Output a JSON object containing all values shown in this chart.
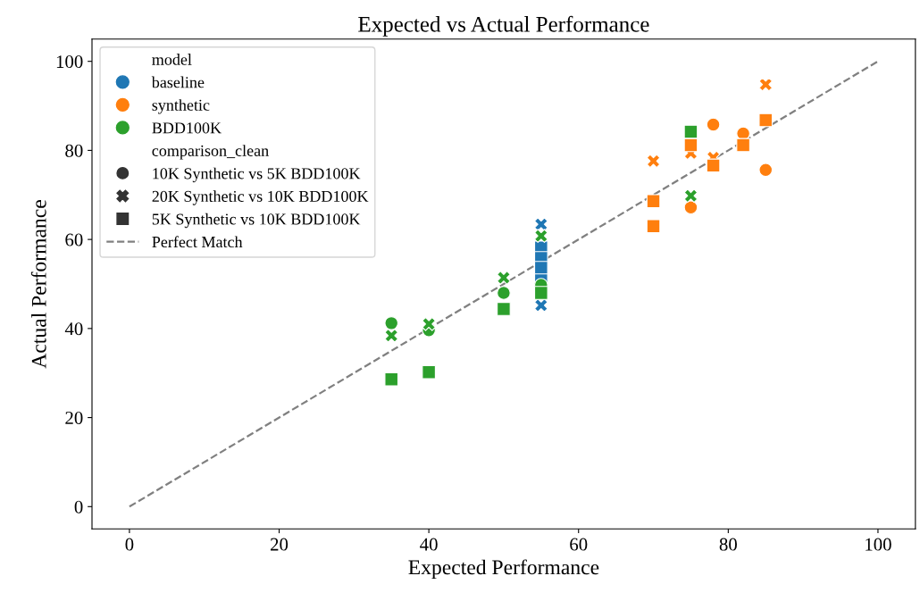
{
  "chart_data": {
    "type": "scatter",
    "title": "Expected vs Actual Performance",
    "xlabel": "Expected Performance",
    "ylabel": "Actual Performance",
    "xlim": [
      -5,
      105
    ],
    "ylim": [
      -5,
      105
    ],
    "xticks": [
      0,
      20,
      40,
      60,
      80,
      100
    ],
    "yticks": [
      0,
      20,
      40,
      60,
      80,
      100
    ],
    "grid": false,
    "legend": "top left",
    "legend_title": [
      "model",
      "comparison_clean"
    ],
    "series": [
      {
        "color": "#1f77b4",
        "marker": "cross",
        "x": [
          55,
          55
        ],
        "values": [
          63.4,
          45.2
        ]
      },
      {
        "color": "#1f77b4",
        "marker": "square",
        "x": [
          55,
          55,
          55,
          55
        ],
        "values": [
          58.2,
          55.8,
          53.6,
          50.8
        ]
      },
      {
        "color": "#ff7f0e",
        "marker": "circle",
        "x": [
          85,
          78,
          82,
          75
        ],
        "values": [
          75.6,
          85.8,
          83.8,
          67.2
        ]
      },
      {
        "color": "#ff7f0e",
        "marker": "cross",
        "x": [
          85,
          78,
          75,
          70
        ],
        "values": [
          94.8,
          78.4,
          79.4,
          77.6
        ]
      },
      {
        "color": "#ff7f0e",
        "marker": "square",
        "x": [
          85,
          78,
          82,
          75,
          70,
          70
        ],
        "values": [
          86.8,
          76.6,
          81.2,
          81.2,
          68.6,
          63
        ]
      },
      {
        "color": "#2ca02c",
        "marker": "circle",
        "x": [
          35,
          40,
          50,
          55
        ],
        "values": [
          41.2,
          39.6,
          48,
          49.8
        ]
      },
      {
        "color": "#2ca02c",
        "marker": "cross",
        "x": [
          35,
          40,
          50,
          55,
          75
        ],
        "values": [
          38.4,
          41,
          51.4,
          60.8,
          69.8
        ]
      },
      {
        "color": "#2ca02c",
        "marker": "square",
        "x": [
          35,
          40,
          50,
          55,
          75
        ],
        "values": [
          28.6,
          30.2,
          44.4,
          48,
          84.2
        ]
      },
      {
        "name": "baseline",
        "color": "#1f77b4",
        "marker": "circle"
      },
      {
        "name": "synthetic",
        "color": "#ff7f0e",
        "marker": "circle"
      },
      {
        "name": "BDD100K",
        "color": "#2ca02c",
        "marker": "circle"
      },
      {
        "name": "10K Synthetic vs 5K BDD100K",
        "color": "#333333",
        "marker": "circle"
      },
      {
        "name": "20K Synthetic vs 10K BDD100K",
        "color": "#333333",
        "marker": "cross"
      },
      {
        "name": "5K Synthetic vs 10K BDD100K",
        "color": "#333333",
        "marker": "square"
      },
      {
        "name": "Perfect Match",
        "type": "line",
        "color": "#808080",
        "line_style": "dashed",
        "x": [
          0,
          100
        ],
        "values": [
          0,
          100
        ]
      }
    ]
  }
}
